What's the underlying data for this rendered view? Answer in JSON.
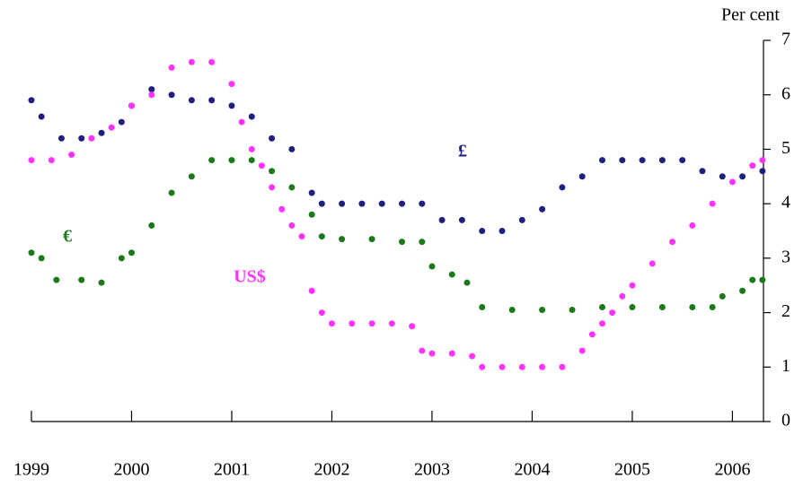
{
  "chart_data": {
    "type": "scatter",
    "y_axis_label": "Per cent",
    "xlim": [
      1999,
      2006.31
    ],
    "xticks": [
      1999,
      2000,
      2001,
      2002,
      2003,
      2004,
      2005,
      2006
    ],
    "ylim": [
      0,
      7
    ],
    "yticks": [
      0,
      1,
      2,
      3,
      4,
      5,
      6,
      7
    ],
    "series": [
      {
        "name": "£",
        "color": "#1f1f80",
        "x": [
          1999.0,
          1999.1,
          1999.3,
          1999.5,
          1999.7,
          1999.9,
          2000.0,
          2000.2,
          2000.4,
          2000.6,
          2000.8,
          2001.0,
          2001.2,
          2001.4,
          2001.6,
          2001.8,
          2001.9,
          2002.1,
          2002.3,
          2002.5,
          2002.7,
          2002.9,
          2003.1,
          2003.3,
          2003.5,
          2003.7,
          2003.9,
          2004.1,
          2004.3,
          2004.5,
          2004.7,
          2004.9,
          2005.1,
          2005.3,
          2005.5,
          2005.7,
          2005.9,
          2006.1,
          2006.3
        ],
        "values": [
          5.9,
          5.6,
          5.2,
          5.2,
          5.3,
          5.5,
          5.8,
          6.1,
          6.0,
          5.9,
          5.9,
          5.8,
          5.6,
          5.2,
          5.0,
          4.2,
          4.0,
          4.0,
          4.0,
          4.0,
          4.0,
          4.0,
          3.7,
          3.7,
          3.5,
          3.5,
          3.7,
          3.9,
          4.3,
          4.5,
          4.8,
          4.8,
          4.8,
          4.8,
          4.8,
          4.6,
          4.5,
          4.5,
          4.6
        ]
      },
      {
        "name": "€",
        "color": "#1a7a1a",
        "x": [
          1999.0,
          1999.1,
          1999.25,
          1999.5,
          1999.7,
          1999.9,
          2000.0,
          2000.2,
          2000.4,
          2000.6,
          2000.8,
          2001.0,
          2001.2,
          2001.4,
          2001.6,
          2001.8,
          2001.9,
          2002.1,
          2002.4,
          2002.7,
          2002.9,
          2003.0,
          2003.2,
          2003.35,
          2003.5,
          2003.8,
          2004.1,
          2004.4,
          2004.7,
          2005.0,
          2005.3,
          2005.6,
          2005.8,
          2005.9,
          2006.1,
          2006.2,
          2006.3
        ],
        "values": [
          3.1,
          3.0,
          2.6,
          2.6,
          2.55,
          3.0,
          3.1,
          3.6,
          4.2,
          4.5,
          4.8,
          4.8,
          4.8,
          4.6,
          4.3,
          3.8,
          3.4,
          3.35,
          3.35,
          3.3,
          3.3,
          2.85,
          2.7,
          2.55,
          2.1,
          2.05,
          2.05,
          2.05,
          2.1,
          2.1,
          2.1,
          2.1,
          2.1,
          2.3,
          2.4,
          2.6,
          2.6
        ]
      },
      {
        "name": "US$",
        "color": "#ff33ff",
        "x": [
          1999.0,
          1999.2,
          1999.4,
          1999.6,
          1999.8,
          2000.0,
          2000.2,
          2000.4,
          2000.6,
          2000.8,
          2001.0,
          2001.1,
          2001.2,
          2001.3,
          2001.4,
          2001.5,
          2001.6,
          2001.7,
          2001.8,
          2001.9,
          2002.0,
          2002.2,
          2002.4,
          2002.6,
          2002.8,
          2002.9,
          2003.0,
          2003.2,
          2003.4,
          2003.5,
          2003.7,
          2003.9,
          2004.1,
          2004.3,
          2004.5,
          2004.6,
          2004.7,
          2004.8,
          2004.9,
          2005.0,
          2005.2,
          2005.4,
          2005.6,
          2005.8,
          2006.0,
          2006.2,
          2006.3
        ],
        "values": [
          4.8,
          4.8,
          4.9,
          5.2,
          5.4,
          5.8,
          6.0,
          6.5,
          6.6,
          6.6,
          6.2,
          5.5,
          5.0,
          4.7,
          4.3,
          3.9,
          3.6,
          3.4,
          2.4,
          2.0,
          1.8,
          1.8,
          1.8,
          1.8,
          1.75,
          1.3,
          1.25,
          1.25,
          1.2,
          1.0,
          1.0,
          1.0,
          1.0,
          1.0,
          1.3,
          1.6,
          1.8,
          2.0,
          2.3,
          2.5,
          2.9,
          3.3,
          3.6,
          4.0,
          4.4,
          4.7,
          4.8
        ]
      }
    ]
  }
}
